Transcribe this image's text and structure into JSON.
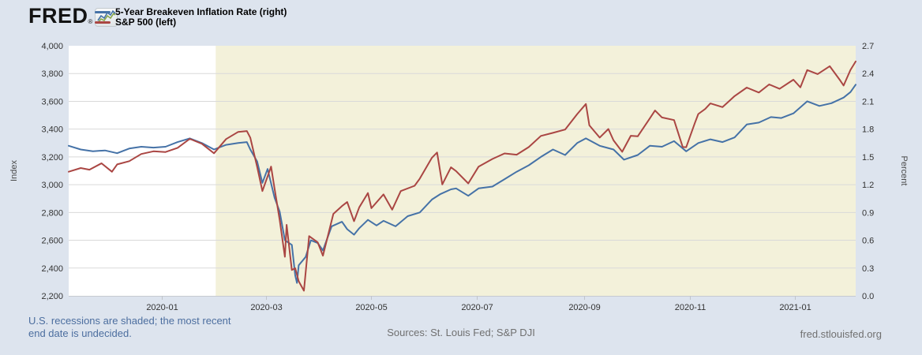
{
  "header": {
    "logo_text": "FRED",
    "registered": "®"
  },
  "legend": {
    "items": [
      {
        "label": "5-Year Breakeven Inflation Rate (right)",
        "color": "#4572a7"
      },
      {
        "label": "S&P 500 (left)",
        "color": "#aa4643"
      }
    ]
  },
  "footer": {
    "recession_note_line1": "U.S. recessions are shaded; the most recent",
    "recession_note_line2": "end date is undecided.",
    "sources": "Sources: St. Louis Fed; S&P DJI",
    "site": "fred.stlouisfed.org"
  },
  "chart_data": {
    "type": "line",
    "x_start": "2019-11-08",
    "x_end": "2021-02-05",
    "x_ticks": [
      {
        "date": "2020-01-01",
        "label": "2020-01"
      },
      {
        "date": "2020-03-01",
        "label": "2020-03"
      },
      {
        "date": "2020-05-01",
        "label": "2020-05"
      },
      {
        "date": "2020-07-01",
        "label": "2020-07"
      },
      {
        "date": "2020-09-01",
        "label": "2020-09"
      },
      {
        "date": "2020-11-01",
        "label": "2020-11"
      },
      {
        "date": "2021-01-01",
        "label": "2021-01"
      }
    ],
    "left_axis": {
      "title": "Index",
      "min": 2200,
      "max": 4000,
      "ticks": [
        {
          "value": 4000,
          "label": "4,000"
        },
        {
          "value": 3800,
          "label": "3,800"
        },
        {
          "value": 3600,
          "label": "3,600"
        },
        {
          "value": 3400,
          "label": "3,400"
        },
        {
          "value": 3200,
          "label": "3,200"
        },
        {
          "value": 3000,
          "label": "3,000"
        },
        {
          "value": 2800,
          "label": "2,800"
        },
        {
          "value": 2600,
          "label": "2,600"
        },
        {
          "value": 2400,
          "label": "2,400"
        },
        {
          "value": 2200,
          "label": "2,200"
        }
      ]
    },
    "right_axis": {
      "title": "Percent",
      "min": 0,
      "max": 2.7,
      "ticks": [
        {
          "value": 2.7,
          "label": "2.7"
        },
        {
          "value": 2.4,
          "label": "2.4"
        },
        {
          "value": 2.1,
          "label": "2.1"
        },
        {
          "value": 1.8,
          "label": "1.8"
        },
        {
          "value": 1.5,
          "label": "1.5"
        },
        {
          "value": 1.2,
          "label": "1.2"
        },
        {
          "value": 0.9,
          "label": "0.9"
        },
        {
          "value": 0.6,
          "label": "0.6"
        },
        {
          "value": 0.3,
          "label": "0.3"
        },
        {
          "value": 0.0,
          "label": "0.0"
        }
      ]
    },
    "recession_shading": {
      "start": "2020-02-01",
      "color": "#f3f1da",
      "note": "U.S. recession, end date undecided"
    },
    "colors": {
      "background": "#dde4ee",
      "plot_background": "#ffffff",
      "gridline": "#d9d9d9"
    },
    "series": [
      {
        "name": "5-Year Breakeven Inflation Rate",
        "axis": "right",
        "unit": "Percent",
        "color": "#4572a7",
        "points": [
          [
            "2019-11-08",
            1.62
          ],
          [
            "2019-11-15",
            1.58
          ],
          [
            "2019-11-22",
            1.56
          ],
          [
            "2019-11-29",
            1.57
          ],
          [
            "2019-12-06",
            1.54
          ],
          [
            "2019-12-13",
            1.59
          ],
          [
            "2019-12-20",
            1.61
          ],
          [
            "2019-12-27",
            1.6
          ],
          [
            "2020-01-03",
            1.61
          ],
          [
            "2020-01-10",
            1.66
          ],
          [
            "2020-01-17",
            1.7
          ],
          [
            "2020-01-24",
            1.65
          ],
          [
            "2020-01-31",
            1.58
          ],
          [
            "2020-02-07",
            1.63
          ],
          [
            "2020-02-14",
            1.65
          ],
          [
            "2020-02-19",
            1.66
          ],
          [
            "2020-02-21",
            1.58
          ],
          [
            "2020-02-25",
            1.45
          ],
          [
            "2020-02-28",
            1.22
          ],
          [
            "2020-03-02",
            1.37
          ],
          [
            "2020-03-06",
            1.06
          ],
          [
            "2020-03-09",
            0.91
          ],
          [
            "2020-03-12",
            0.6
          ],
          [
            "2020-03-16",
            0.55
          ],
          [
            "2020-03-18",
            0.22
          ],
          [
            "2020-03-19",
            0.14
          ],
          [
            "2020-03-20",
            0.33
          ],
          [
            "2020-03-24",
            0.42
          ],
          [
            "2020-03-27",
            0.6
          ],
          [
            "2020-03-31",
            0.57
          ],
          [
            "2020-04-03",
            0.49
          ],
          [
            "2020-04-08",
            0.75
          ],
          [
            "2020-04-14",
            0.8
          ],
          [
            "2020-04-17",
            0.72
          ],
          [
            "2020-04-21",
            0.66
          ],
          [
            "2020-04-24",
            0.73
          ],
          [
            "2020-04-29",
            0.82
          ],
          [
            "2020-05-04",
            0.76
          ],
          [
            "2020-05-08",
            0.81
          ],
          [
            "2020-05-15",
            0.75
          ],
          [
            "2020-05-22",
            0.86
          ],
          [
            "2020-05-29",
            0.9
          ],
          [
            "2020-06-05",
            1.04
          ],
          [
            "2020-06-10",
            1.1
          ],
          [
            "2020-06-16",
            1.15
          ],
          [
            "2020-06-19",
            1.16
          ],
          [
            "2020-06-26",
            1.08
          ],
          [
            "2020-07-02",
            1.16
          ],
          [
            "2020-07-10",
            1.18
          ],
          [
            "2020-07-17",
            1.26
          ],
          [
            "2020-07-24",
            1.34
          ],
          [
            "2020-07-31",
            1.41
          ],
          [
            "2020-08-07",
            1.5
          ],
          [
            "2020-08-14",
            1.58
          ],
          [
            "2020-08-21",
            1.52
          ],
          [
            "2020-08-28",
            1.65
          ],
          [
            "2020-09-02",
            1.7
          ],
          [
            "2020-09-10",
            1.62
          ],
          [
            "2020-09-18",
            1.58
          ],
          [
            "2020-09-24",
            1.47
          ],
          [
            "2020-10-02",
            1.52
          ],
          [
            "2020-10-09",
            1.62
          ],
          [
            "2020-10-16",
            1.61
          ],
          [
            "2020-10-23",
            1.67
          ],
          [
            "2020-10-30",
            1.56
          ],
          [
            "2020-11-06",
            1.65
          ],
          [
            "2020-11-13",
            1.69
          ],
          [
            "2020-11-20",
            1.66
          ],
          [
            "2020-11-27",
            1.71
          ],
          [
            "2020-12-04",
            1.85
          ],
          [
            "2020-12-11",
            1.87
          ],
          [
            "2020-12-18",
            1.93
          ],
          [
            "2020-12-24",
            1.92
          ],
          [
            "2020-12-31",
            1.97
          ],
          [
            "2021-01-08",
            2.1
          ],
          [
            "2021-01-15",
            2.05
          ],
          [
            "2021-01-22",
            2.08
          ],
          [
            "2021-01-29",
            2.14
          ],
          [
            "2021-02-02",
            2.2
          ],
          [
            "2021-02-05",
            2.28
          ]
        ]
      },
      {
        "name": "S&P 500",
        "axis": "left",
        "unit": "Index",
        "color": "#aa4643",
        "points": [
          [
            "2019-11-08",
            3093
          ],
          [
            "2019-11-15",
            3120
          ],
          [
            "2019-11-20",
            3108
          ],
          [
            "2019-11-27",
            3154
          ],
          [
            "2019-12-03",
            3093
          ],
          [
            "2019-12-06",
            3146
          ],
          [
            "2019-12-13",
            3169
          ],
          [
            "2019-12-20",
            3221
          ],
          [
            "2019-12-27",
            3240
          ],
          [
            "2020-01-03",
            3235
          ],
          [
            "2020-01-10",
            3265
          ],
          [
            "2020-01-17",
            3330
          ],
          [
            "2020-01-24",
            3295
          ],
          [
            "2020-01-31",
            3226
          ],
          [
            "2020-02-07",
            3328
          ],
          [
            "2020-02-14",
            3380
          ],
          [
            "2020-02-19",
            3386
          ],
          [
            "2020-02-21",
            3338
          ],
          [
            "2020-02-25",
            3128
          ],
          [
            "2020-02-28",
            2954
          ],
          [
            "2020-03-04",
            3130
          ],
          [
            "2020-03-06",
            2972
          ],
          [
            "2020-03-09",
            2746
          ],
          [
            "2020-03-12",
            2481
          ],
          [
            "2020-03-13",
            2711
          ],
          [
            "2020-03-16",
            2386
          ],
          [
            "2020-03-18",
            2398
          ],
          [
            "2020-03-20",
            2305
          ],
          [
            "2020-03-23",
            2237
          ],
          [
            "2020-03-26",
            2630
          ],
          [
            "2020-03-31",
            2585
          ],
          [
            "2020-04-03",
            2489
          ],
          [
            "2020-04-09",
            2790
          ],
          [
            "2020-04-14",
            2846
          ],
          [
            "2020-04-17",
            2875
          ],
          [
            "2020-04-21",
            2737
          ],
          [
            "2020-04-24",
            2837
          ],
          [
            "2020-04-29",
            2940
          ],
          [
            "2020-05-01",
            2831
          ],
          [
            "2020-05-08",
            2930
          ],
          [
            "2020-05-13",
            2820
          ],
          [
            "2020-05-18",
            2954
          ],
          [
            "2020-05-26",
            2992
          ],
          [
            "2020-05-29",
            3044
          ],
          [
            "2020-06-05",
            3194
          ],
          [
            "2020-06-08",
            3232
          ],
          [
            "2020-06-11",
            3002
          ],
          [
            "2020-06-16",
            3125
          ],
          [
            "2020-06-19",
            3098
          ],
          [
            "2020-06-26",
            3009
          ],
          [
            "2020-07-02",
            3130
          ],
          [
            "2020-07-10",
            3185
          ],
          [
            "2020-07-17",
            3225
          ],
          [
            "2020-07-24",
            3216
          ],
          [
            "2020-07-31",
            3271
          ],
          [
            "2020-08-07",
            3351
          ],
          [
            "2020-08-14",
            3373
          ],
          [
            "2020-08-21",
            3397
          ],
          [
            "2020-08-28",
            3508
          ],
          [
            "2020-09-02",
            3581
          ],
          [
            "2020-09-04",
            3427
          ],
          [
            "2020-09-10",
            3339
          ],
          [
            "2020-09-15",
            3401
          ],
          [
            "2020-09-18",
            3319
          ],
          [
            "2020-09-23",
            3237
          ],
          [
            "2020-09-28",
            3352
          ],
          [
            "2020-10-02",
            3348
          ],
          [
            "2020-10-09",
            3477
          ],
          [
            "2020-10-12",
            3534
          ],
          [
            "2020-10-16",
            3484
          ],
          [
            "2020-10-23",
            3465
          ],
          [
            "2020-10-28",
            3271
          ],
          [
            "2020-10-30",
            3270
          ],
          [
            "2020-11-04",
            3443
          ],
          [
            "2020-11-06",
            3509
          ],
          [
            "2020-11-10",
            3545
          ],
          [
            "2020-11-13",
            3585
          ],
          [
            "2020-11-20",
            3558
          ],
          [
            "2020-11-27",
            3638
          ],
          [
            "2020-12-04",
            3699
          ],
          [
            "2020-12-11",
            3663
          ],
          [
            "2020-12-17",
            3722
          ],
          [
            "2020-12-23",
            3690
          ],
          [
            "2020-12-31",
            3756
          ],
          [
            "2021-01-04",
            3701
          ],
          [
            "2021-01-08",
            3825
          ],
          [
            "2021-01-14",
            3796
          ],
          [
            "2021-01-21",
            3853
          ],
          [
            "2021-01-27",
            3751
          ],
          [
            "2021-01-29",
            3714
          ],
          [
            "2021-02-02",
            3826
          ],
          [
            "2021-02-05",
            3887
          ]
        ]
      }
    ]
  }
}
